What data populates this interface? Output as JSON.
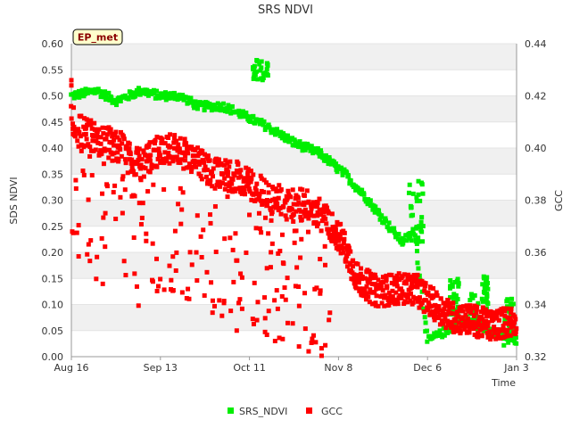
{
  "chart_data": {
    "type": "scatter",
    "title": "SRS NDVI",
    "badge": "EP_met",
    "xlabel": "Time",
    "ylabel_left": "SDS NDVI",
    "ylabel_right": "GCC",
    "x_range_days": [
      0,
      140
    ],
    "x_ticks": [
      {
        "day": 0,
        "label": "Aug 16"
      },
      {
        "day": 28,
        "label": "Sep 13"
      },
      {
        "day": 56,
        "label": "Oct 11"
      },
      {
        "day": 84,
        "label": "Nov 8"
      },
      {
        "day": 112,
        "label": "Dec 6"
      },
      {
        "day": 140,
        "label": "Jan 3"
      }
    ],
    "ylim_left": [
      0.0,
      0.6
    ],
    "y_ticks_left": [
      "0.00",
      "0.05",
      "0.10",
      "0.15",
      "0.20",
      "0.25",
      "0.30",
      "0.35",
      "0.40",
      "0.45",
      "0.50",
      "0.55",
      "0.60"
    ],
    "ylim_right": [
      0.32,
      0.44
    ],
    "y_ticks_right": [
      "0.32",
      "0.34",
      "0.36",
      "0.38",
      "0.40",
      "0.42",
      "0.44"
    ],
    "grid_bands": true,
    "legend_position": "bottom-center",
    "series": [
      {
        "name": "SRS_NDVI",
        "axis": "left",
        "color": "#00ee00",
        "trend": [
          {
            "day": 0,
            "value": 0.5
          },
          {
            "day": 8,
            "value": 0.51
          },
          {
            "day": 14,
            "value": 0.49
          },
          {
            "day": 22,
            "value": 0.51
          },
          {
            "day": 28,
            "value": 0.5
          },
          {
            "day": 34,
            "value": 0.5
          },
          {
            "day": 40,
            "value": 0.48
          },
          {
            "day": 48,
            "value": 0.48
          },
          {
            "day": 55,
            "value": 0.46
          },
          {
            "day": 62,
            "value": 0.44
          },
          {
            "day": 70,
            "value": 0.41
          },
          {
            "day": 78,
            "value": 0.39
          },
          {
            "day": 86,
            "value": 0.35
          },
          {
            "day": 92,
            "value": 0.31
          },
          {
            "day": 100,
            "value": 0.25
          },
          {
            "day": 104,
            "value": 0.22
          },
          {
            "day": 108,
            "value": 0.24
          },
          {
            "day": 112,
            "value": 0.03
          },
          {
            "day": 118,
            "value": 0.05
          },
          {
            "day": 124,
            "value": 0.07
          },
          {
            "day": 132,
            "value": 0.05
          },
          {
            "day": 140,
            "value": 0.03
          }
        ],
        "spread": 0.008,
        "clusters": [
          {
            "day_start": 57,
            "day_end": 62,
            "value_min": 0.53,
            "value_max": 0.57
          },
          {
            "day_start": 106,
            "day_end": 111,
            "value_min": 0.22,
            "value_max": 0.34
          },
          {
            "day_start": 119,
            "day_end": 122,
            "value_min": 0.08,
            "value_max": 0.15
          },
          {
            "day_start": 125,
            "day_end": 128,
            "value_min": 0.05,
            "value_max": 0.12
          },
          {
            "day_start": 129,
            "day_end": 131,
            "value_min": 0.09,
            "value_max": 0.16
          },
          {
            "day_start": 136,
            "day_end": 139,
            "value_min": 0.02,
            "value_max": 0.12
          }
        ],
        "points_per_day": 4
      },
      {
        "name": "GCC",
        "axis": "right",
        "color": "#ff0000",
        "trend": [
          {
            "day": 0,
            "value": 0.411
          },
          {
            "day": 4,
            "value": 0.406
          },
          {
            "day": 10,
            "value": 0.403
          },
          {
            "day": 16,
            "value": 0.4
          },
          {
            "day": 22,
            "value": 0.393
          },
          {
            "day": 28,
            "value": 0.4
          },
          {
            "day": 34,
            "value": 0.399
          },
          {
            "day": 40,
            "value": 0.394
          },
          {
            "day": 46,
            "value": 0.39
          },
          {
            "day": 52,
            "value": 0.389
          },
          {
            "day": 58,
            "value": 0.385
          },
          {
            "day": 64,
            "value": 0.38
          },
          {
            "day": 70,
            "value": 0.379
          },
          {
            "day": 76,
            "value": 0.377
          },
          {
            "day": 82,
            "value": 0.37
          },
          {
            "day": 86,
            "value": 0.362
          },
          {
            "day": 90,
            "value": 0.35
          },
          {
            "day": 96,
            "value": 0.345
          },
          {
            "day": 102,
            "value": 0.346
          },
          {
            "day": 108,
            "value": 0.346
          },
          {
            "day": 114,
            "value": 0.34
          },
          {
            "day": 120,
            "value": 0.335
          },
          {
            "day": 126,
            "value": 0.334
          },
          {
            "day": 132,
            "value": 0.332
          },
          {
            "day": 140,
            "value": 0.334
          }
        ],
        "spread": 0.006,
        "low_spread": 0.028,
        "low_day_end": 82,
        "points_per_day": 9,
        "outliers": [
          {
            "day": 0,
            "value": 0.426
          },
          {
            "day": 0,
            "value": 0.424
          },
          {
            "day": 52,
            "value": 0.33
          },
          {
            "day": 53,
            "value": 0.342
          }
        ]
      }
    ]
  }
}
